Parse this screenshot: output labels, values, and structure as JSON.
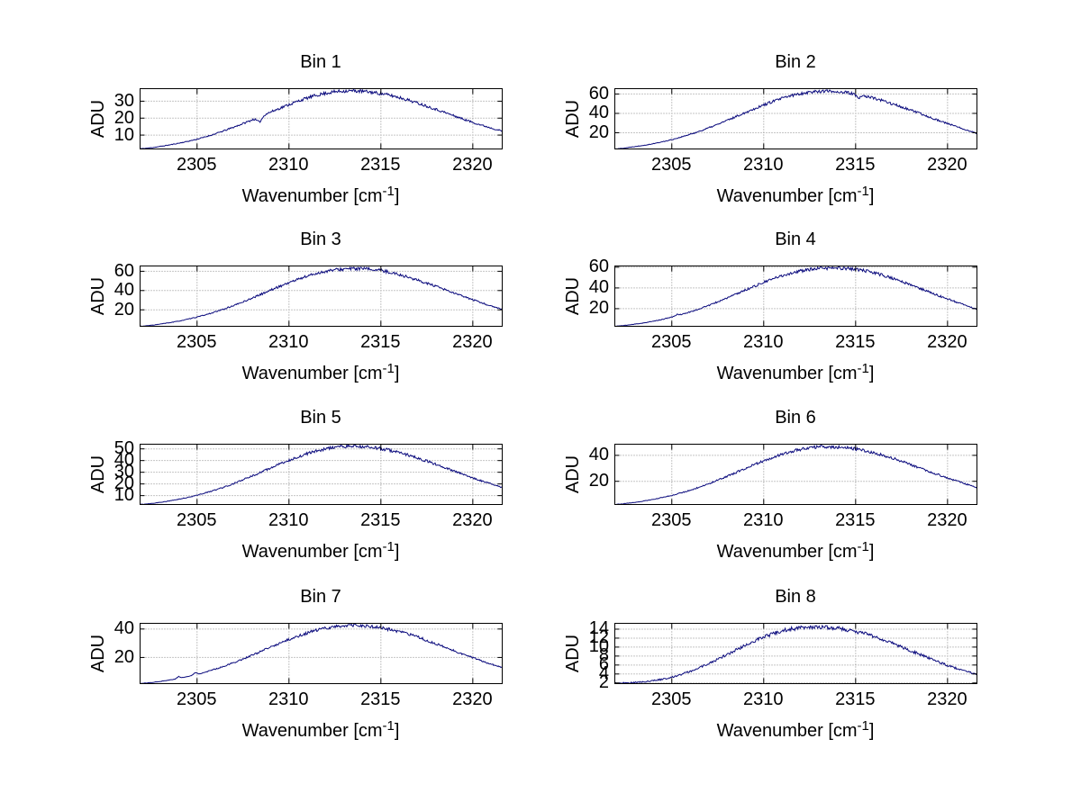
{
  "figure": {
    "background": "#ffffff",
    "line_color": "#0a0a7d",
    "grid_color": "#8c8c8c",
    "axis_color": "#000000"
  },
  "xlabel": {
    "pre": "Wavenumber [cm",
    "sup": "-1",
    "post": "]"
  },
  "ylabel": "ADU",
  "wavenumber_anchors": [
    2302,
    2303,
    2304,
    2305,
    2306,
    2307,
    2308,
    2309,
    2310,
    2311,
    2312,
    2313,
    2314,
    2315,
    2316,
    2317,
    2318,
    2319,
    2320,
    2321,
    2322
  ],
  "chart_data": [
    {
      "type": "line",
      "title": "Bin 1",
      "x_ticks": [
        2305,
        2310,
        2315,
        2320
      ],
      "y_ticks": [
        10,
        20,
        30
      ],
      "xlim": [
        2301.9,
        2321.6
      ],
      "ylim": [
        1.8,
        37.4
      ],
      "grid": true,
      "legend": false,
      "seed": 11,
      "adu_anchors": [
        2.0,
        3.3,
        5.2,
        7.6,
        10.8,
        14.7,
        19.0,
        23.6,
        28.0,
        31.9,
        34.7,
        36.0,
        35.8,
        34.5,
        32.2,
        28.9,
        25.2,
        21.3,
        17.5,
        14.2,
        11.5
      ],
      "spikes": [
        {
          "x": 2308.4,
          "amp": -3.2,
          "w": 0.3
        }
      ]
    },
    {
      "type": "line",
      "title": "Bin 2",
      "x_ticks": [
        2305,
        2310,
        2315,
        2320
      ],
      "y_ticks": [
        20,
        40,
        60
      ],
      "xlim": [
        2301.9,
        2321.6
      ],
      "ylim": [
        3.3,
        65.5
      ],
      "grid": true,
      "legend": false,
      "seed": 22,
      "adu_anchors": [
        3.5,
        5.8,
        8.8,
        13.0,
        18.4,
        25.0,
        32.7,
        40.9,
        48.7,
        55.5,
        60.4,
        62.8,
        62.4,
        59.9,
        55.6,
        49.8,
        43.3,
        36.3,
        29.5,
        23.2,
        17.6
      ],
      "spikes": [
        {
          "x": 2315.15,
          "amp": -4.5,
          "w": 0.25
        }
      ]
    },
    {
      "type": "line",
      "title": "Bin 3",
      "x_ticks": [
        2305,
        2310,
        2315,
        2320
      ],
      "y_ticks": [
        20,
        40,
        60
      ],
      "xlim": [
        2301.9,
        2321.6
      ],
      "ylim": [
        2.9,
        65.5
      ],
      "grid": true,
      "legend": false,
      "seed": 33,
      "adu_anchors": [
        3.0,
        5.2,
        8.3,
        12.5,
        17.9,
        24.5,
        32.2,
        40.4,
        48.2,
        55.0,
        59.9,
        62.3,
        62.6,
        60.8,
        56.5,
        50.7,
        44.2,
        37.2,
        30.4,
        24.0,
        18.3
      ],
      "spikes": []
    },
    {
      "type": "line",
      "title": "Bin 4",
      "x_ticks": [
        2305,
        2310,
        2315,
        2320
      ],
      "y_ticks": [
        20,
        40,
        60
      ],
      "xlim": [
        2301.9,
        2321.6
      ],
      "ylim": [
        3.0,
        61.2
      ],
      "grid": true,
      "legend": false,
      "seed": 44,
      "adu_anchors": [
        3.2,
        5.1,
        7.9,
        11.9,
        16.9,
        23.1,
        30.3,
        38.0,
        45.3,
        51.8,
        56.3,
        58.6,
        59.2,
        58.0,
        54.6,
        49.3,
        42.9,
        36.1,
        29.4,
        23.2,
        17.7
      ],
      "spikes": [
        {
          "x": 2305.3,
          "amp": 1.4,
          "w": 0.2
        }
      ]
    },
    {
      "type": "line",
      "title": "Bin 5",
      "x_ticks": [
        2305,
        2310,
        2315,
        2320
      ],
      "y_ticks": [
        10,
        20,
        30,
        40,
        50
      ],
      "xlim": [
        2301.9,
        2321.6
      ],
      "ylim": [
        2.4,
        54.0
      ],
      "grid": true,
      "legend": false,
      "seed": 55,
      "adu_anchors": [
        2.6,
        4.3,
        6.9,
        10.4,
        14.9,
        20.4,
        26.8,
        33.6,
        40.2,
        45.9,
        50.0,
        52.1,
        51.9,
        50.2,
        46.9,
        42.2,
        36.7,
        30.9,
        25.2,
        20.0,
        15.5
      ],
      "spikes": []
    },
    {
      "type": "line",
      "title": "Bin 6",
      "x_ticks": [
        2305,
        2310,
        2315,
        2320
      ],
      "y_ticks": [
        20,
        40
      ],
      "xlim": [
        2301.9,
        2321.6
      ],
      "ylim": [
        2.1,
        48.6
      ],
      "grid": true,
      "legend": false,
      "seed": 66,
      "adu_anchors": [
        2.3,
        3.8,
        6.1,
        9.2,
        13.2,
        18.1,
        23.8,
        29.9,
        35.8,
        40.9,
        44.6,
        46.5,
        46.4,
        44.9,
        41.9,
        37.8,
        32.9,
        27.7,
        22.6,
        17.9,
        13.9
      ],
      "spikes": []
    },
    {
      "type": "line",
      "title": "Bin 7",
      "x_ticks": [
        2305,
        2310,
        2315,
        2320
      ],
      "y_ticks": [
        20,
        40
      ],
      "xlim": [
        2301.9,
        2321.6
      ],
      "ylim": [
        1.6,
        44.0
      ],
      "grid": true,
      "legend": false,
      "seed": 77,
      "adu_anchors": [
        1.8,
        3.2,
        5.3,
        8.2,
        11.9,
        16.4,
        21.6,
        27.2,
        32.6,
        37.2,
        40.6,
        42.3,
        42.2,
        40.8,
        38.1,
        34.3,
        29.5,
        24.6,
        19.8,
        15.4,
        11.5
      ],
      "spikes": [
        {
          "x": 2304.0,
          "amp": 1.3,
          "w": 0.18
        },
        {
          "x": 2304.9,
          "amp": 1.6,
          "w": 0.18
        }
      ]
    },
    {
      "type": "line",
      "title": "Bin 8",
      "x_ticks": [
        2305,
        2310,
        2315,
        2320
      ],
      "y_ticks": [
        2,
        4,
        6,
        8,
        10,
        12,
        14
      ],
      "xlim": [
        2301.9,
        2321.6
      ],
      "ylim": [
        1.85,
        15.3
      ],
      "grid": true,
      "legend": false,
      "seed": 88,
      "adu_anchors": [
        2.0,
        2.1,
        2.5,
        3.3,
        4.6,
        6.3,
        8.3,
        10.4,
        12.2,
        13.6,
        14.3,
        14.5,
        14.2,
        13.5,
        12.4,
        10.9,
        9.2,
        7.5,
        5.9,
        4.6,
        3.6
      ],
      "spikes": []
    }
  ]
}
